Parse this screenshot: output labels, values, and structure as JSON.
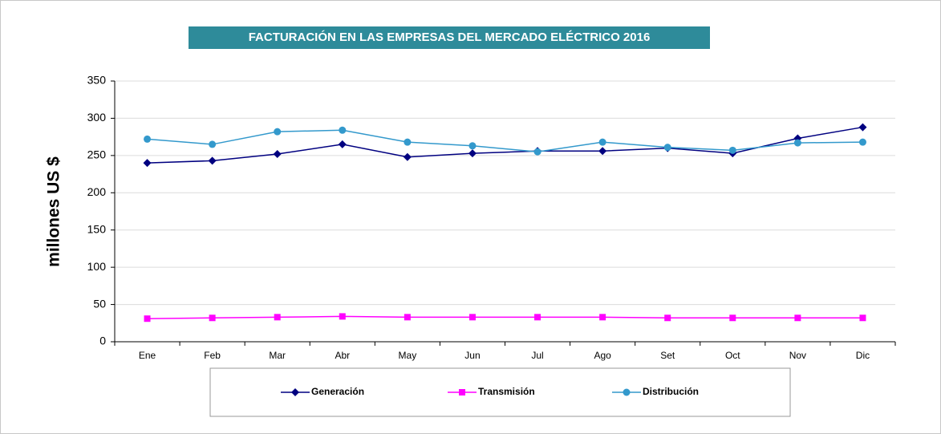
{
  "chart_data": {
    "type": "line",
    "title": "FACTURACIÓN EN LAS EMPRESAS DEL MERCADO ELÉCTRICO  2016",
    "y_label": "millones  US $",
    "categories": [
      "Ene",
      "Feb",
      "Mar",
      "Abr",
      "May",
      "Jun",
      "Jul",
      "Ago",
      "Set",
      "Oct",
      "Nov",
      "Dic"
    ],
    "series": [
      {
        "name": "Generación",
        "color": "#000080",
        "marker": "diamond",
        "values": [
          240,
          243,
          252,
          265,
          248,
          253,
          256,
          256,
          260,
          253,
          273,
          288
        ]
      },
      {
        "name": "Transmisión",
        "color": "#ff00ff",
        "marker": "square",
        "values": [
          31,
          32,
          33,
          34,
          33,
          33,
          33,
          33,
          32,
          32,
          32,
          32
        ]
      },
      {
        "name": "Distribución",
        "color": "#3399cc",
        "marker": "circle",
        "values": [
          272,
          265,
          282,
          284,
          268,
          263,
          255,
          268,
          261,
          257,
          267,
          268
        ]
      }
    ],
    "ylim": [
      0,
      350
    ],
    "yticks": [
      0,
      50,
      100,
      150,
      200,
      250,
      300,
      350
    ],
    "grid": true,
    "legend": "bottom"
  }
}
